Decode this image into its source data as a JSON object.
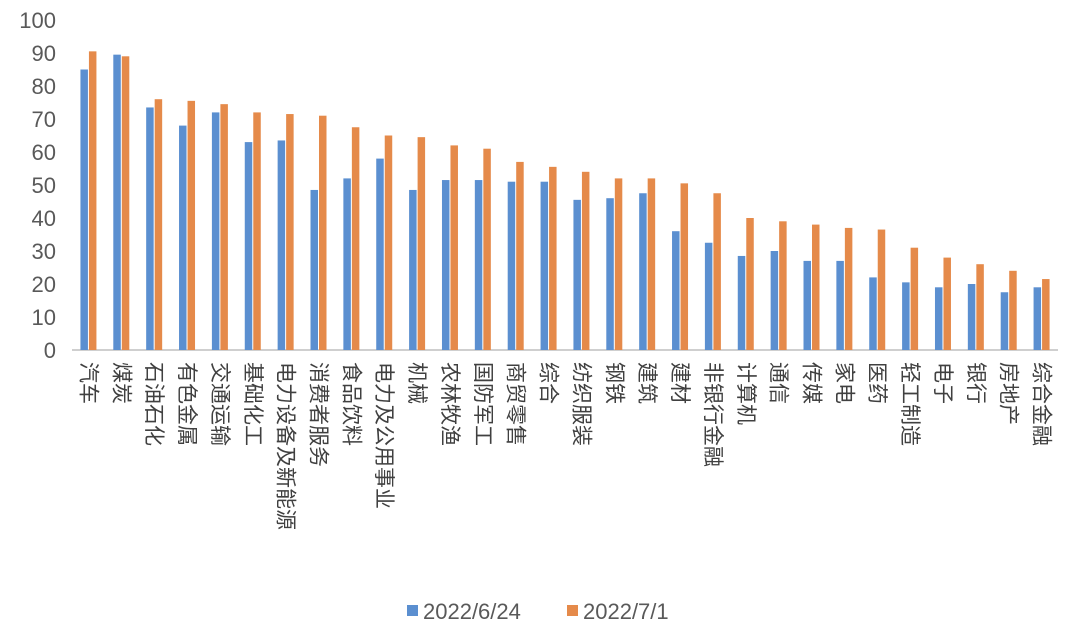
{
  "chart_data": {
    "type": "bar",
    "categories": [
      "汽车",
      "煤炭",
      "石油石化",
      "有色金属",
      "交通运输",
      "基础化工",
      "电力设备及新能源",
      "消费者服务",
      "食品饮料",
      "电力及公用事业",
      "机械",
      "农林牧渔",
      "国防军工",
      "商贸零售",
      "综合",
      "纺织服装",
      "钢铁",
      "建筑",
      "建材",
      "非银行金融",
      "计算机",
      "通信",
      "传媒",
      "家电",
      "医药",
      "轻工制造",
      "电子",
      "银行",
      "房地产",
      "综合金融"
    ],
    "series": [
      {
        "name": "2022/6/24",
        "color": "#5b8fd0",
        "values": [
          85,
          89.5,
          73.5,
          68,
          72,
          63,
          63.5,
          48.5,
          52,
          58,
          48.5,
          51.5,
          51.5,
          51,
          51,
          45.5,
          46,
          47.5,
          36,
          32.5,
          28.5,
          30,
          27,
          27,
          22,
          20.5,
          19,
          20,
          17.5,
          19
        ]
      },
      {
        "name": "2022/7/1",
        "color": "#e58a4a",
        "values": [
          90.5,
          89,
          76,
          75.5,
          74.5,
          72,
          71.5,
          71,
          67.5,
          65,
          64.5,
          62,
          61,
          57,
          55.5,
          54,
          52,
          52,
          50.5,
          47.5,
          40,
          39,
          38,
          37,
          36.5,
          31,
          28,
          26,
          24,
          21.5
        ]
      }
    ],
    "ylim": [
      0,
      100
    ],
    "yticks": [
      "0",
      "10",
      "20",
      "30",
      "40",
      "50",
      "60",
      "70",
      "80",
      "90",
      "100"
    ],
    "grid": false,
    "legend": "bottom"
  }
}
